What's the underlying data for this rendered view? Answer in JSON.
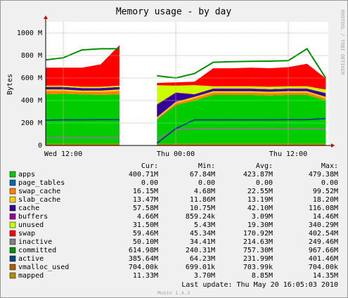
{
  "chart_data": {
    "type": "area",
    "title": "Memory usage - by day",
    "y_label": "Bytes",
    "side_text": "RRDTOOL / TOBI OETIKER",
    "footer": "Last update: Thu May 20 16:05:03 2010",
    "version": "Munin 1.4.3",
    "categories": [
      null,
      "Wed 12:00",
      null,
      null,
      null,
      null,
      null,
      "Thu 00:00",
      null,
      null,
      null,
      null,
      null,
      "Thu 12:00",
      null,
      null
    ],
    "ylim": [
      0,
      1100
    ],
    "yticks": [
      0,
      {
        "value": 200,
        "label": "200 M"
      },
      {
        "value": 400,
        "label": "400 M"
      },
      {
        "value": 600,
        "label": "600 M"
      },
      {
        "value": 800,
        "label": "800 M"
      },
      {
        "value": 1000,
        "label": "1000 M"
      }
    ],
    "grid": true,
    "series": [
      {
        "name": "apps",
        "color": "#00cc00",
        "style": "area",
        "values": [
          455,
          460,
          455,
          450,
          455,
          null,
          230,
          360,
          400,
          450,
          450,
          450,
          445,
          450,
          450,
          400
        ]
      },
      {
        "name": "page_tables",
        "color": "#0066b3",
        "style": "area",
        "values": [
          0,
          0,
          0,
          0,
          0,
          null,
          0,
          0,
          0,
          0,
          0,
          0,
          0,
          0,
          0,
          0
        ]
      },
      {
        "name": "swap_cache",
        "color": "#ff8000",
        "style": "area",
        "values": [
          30,
          25,
          20,
          25,
          30,
          null,
          10,
          15,
          20,
          20,
          20,
          20,
          20,
          20,
          20,
          20
        ]
      },
      {
        "name": "slab_cache",
        "color": "#ffcc00",
        "style": "area",
        "values": [
          13,
          13,
          13,
          13,
          13,
          null,
          12,
          13,
          13,
          13,
          13,
          13,
          13,
          13,
          13,
          13
        ]
      },
      {
        "name": "cache",
        "color": "#330099",
        "style": "area",
        "values": [
          20,
          20,
          20,
          20,
          20,
          null,
          110,
          80,
          20,
          20,
          20,
          20,
          20,
          20,
          20,
          30
        ]
      },
      {
        "name": "buffers",
        "color": "#990099",
        "style": "area",
        "values": [
          4,
          4,
          4,
          4,
          4,
          null,
          4,
          4,
          4,
          4,
          4,
          4,
          4,
          4,
          4,
          4
        ]
      },
      {
        "name": "unused",
        "color": "#ccff00",
        "style": "area",
        "values": [
          10,
          10,
          10,
          10,
          10,
          null,
          170,
          60,
          80,
          20,
          20,
          20,
          20,
          20,
          20,
          30
        ]
      },
      {
        "name": "swap",
        "color": "#ff0000",
        "style": "area",
        "values": [
          160,
          160,
          170,
          200,
          360,
          null,
          20,
          30,
          30,
          160,
          160,
          165,
          165,
          170,
          200,
          100
        ]
      },
      {
        "name": "inactive",
        "color": "#808080",
        "style": "line",
        "values": [
          70,
          70,
          70,
          70,
          70,
          null,
          60,
          140,
          150,
          150,
          150,
          150,
          150,
          150,
          150,
          150
        ]
      },
      {
        "name": "committed",
        "color": "#008f00",
        "style": "line",
        "values": [
          760,
          780,
          850,
          860,
          860,
          null,
          620,
          600,
          640,
          740,
          745,
          748,
          750,
          755,
          860,
          600
        ]
      },
      {
        "name": "active",
        "color": "#00487d",
        "style": "line",
        "values": [
          225,
          228,
          228,
          230,
          230,
          null,
          20,
          150,
          228,
          228,
          228,
          228,
          228,
          230,
          230,
          240
        ]
      },
      {
        "name": "vmalloc_used",
        "color": "#b35a00",
        "style": "line",
        "values": [
          0.7,
          0.7,
          0.7,
          0.7,
          0.7,
          null,
          0.7,
          0.7,
          0.7,
          0.7,
          0.7,
          0.7,
          0.7,
          0.7,
          0.7,
          0.7
        ]
      },
      {
        "name": "mapped",
        "color": "#b38f00",
        "style": "line",
        "values": [
          11,
          11,
          11,
          11,
          11,
          null,
          10,
          10,
          11,
          11,
          11,
          11,
          11,
          11,
          11,
          11
        ]
      }
    ],
    "summary": {
      "headers": [
        "Cur:",
        "Min:",
        "Avg:",
        "Max:"
      ],
      "rows": [
        [
          "400.71M",
          "67.84M",
          "423.87M",
          "479.38M"
        ],
        [
          "0.00",
          "0.00",
          "0.00",
          "0.00"
        ],
        [
          "16.15M",
          "4.68M",
          "22.55M",
          "99.52M"
        ],
        [
          "13.47M",
          "11.86M",
          "13.19M",
          "18.20M"
        ],
        [
          "57.58M",
          "10.75M",
          "42.10M",
          "116.08M"
        ],
        [
          "4.66M",
          "859.24k",
          "3.09M",
          "14.46M"
        ],
        [
          "31.50M",
          "5.43M",
          "19.30M",
          "340.29M"
        ],
        [
          "59.46M",
          "45.34M",
          "170.92M",
          "402.54M"
        ],
        [
          "50.10M",
          "34.41M",
          "214.63M",
          "249.46M"
        ],
        [
          "614.98M",
          "240.31M",
          "757.30M",
          "967.66M"
        ],
        [
          "385.64M",
          "64.23M",
          "231.99M",
          "401.46M"
        ],
        [
          "704.00k",
          "699.01k",
          "703.99k",
          "704.00k"
        ],
        [
          "11.33M",
          "3.70M",
          "8.85M",
          "14.35M"
        ]
      ]
    }
  }
}
